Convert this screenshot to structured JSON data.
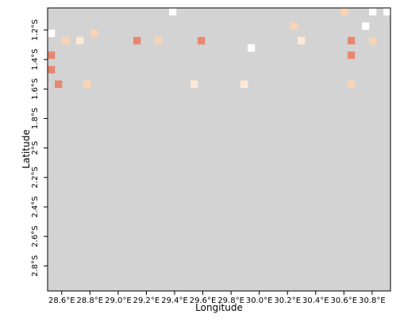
{
  "chart_data": {
    "type": "heatmap",
    "title": "",
    "xlabel": "Longitude",
    "ylabel": "Latitude",
    "xlim": [
      28.5,
      30.93
    ],
    "ylim": [
      -2.97,
      -1.05
    ],
    "x_ticks": [
      {
        "value": 28.6,
        "label": "28.6°E"
      },
      {
        "value": 28.8,
        "label": "28.8°E"
      },
      {
        "value": 29.0,
        "label": "29.0°E"
      },
      {
        "value": 29.2,
        "label": "29.2°E"
      },
      {
        "value": 29.4,
        "label": "29.4°E"
      },
      {
        "value": 29.6,
        "label": "29.6°E"
      },
      {
        "value": 29.8,
        "label": "29.8°E"
      },
      {
        "value": 30.0,
        "label": "30.0°E"
      },
      {
        "value": 30.2,
        "label": "30.2°E"
      },
      {
        "value": 30.4,
        "label": "30.4°E"
      },
      {
        "value": 30.6,
        "label": "30.6°E"
      },
      {
        "value": 30.8,
        "label": "30.8°E"
      }
    ],
    "y_ticks": [
      {
        "value": -1.2,
        "label": "1.2°S"
      },
      {
        "value": -1.4,
        "label": "1.4°S"
      },
      {
        "value": -1.6,
        "label": "1.6°S"
      },
      {
        "value": -1.8,
        "label": "1.8°S"
      },
      {
        "value": -2.0,
        "label": "2°S"
      },
      {
        "value": -2.2,
        "label": "2.2°S"
      },
      {
        "value": -2.4,
        "label": "2.4°S"
      },
      {
        "value": -2.6,
        "label": "2.6°S"
      },
      {
        "value": -2.8,
        "label": "2.8°S"
      }
    ],
    "cell_size_deg": 0.05,
    "grid_cols": 48,
    "grid_rows": 39,
    "background_color": "#d3d3d3",
    "legend": "none",
    "grid": false,
    "colors": {
      "1": "#ffffff",
      "2": "#fde8d8",
      "3": "#f8d3b4",
      "4": "#e8876f"
    },
    "rows": [
      "000000000000000001000000000000000000000003000101",
      "000000000000000000000000000000000000000000000000",
      "000000000000000000000000000000000030000000001000",
      "100000300000000000000000000000000000000000000000",
      "003020000000400300000400000000000002000000400300",
      "000000000000000000000000000010000000000000000000",
      "400000000000000000000000000000000000000000400000",
      "000000000000000000000000000000000000000000000000",
      "400000000000000000000000000000000000000000000000",
      "000000000000000000000000000000000000000000000000",
      "040003000000000000002000000200000000000000300000",
      "000000000000000000000000000000000000000000000000",
      "000000000000000000000000000000000000000000000000",
      "000000000000000000000000000000000000000000000000",
      "000000000000000000000000000000000000000000000000",
      "000000000000000000000000000000000000000000000000",
      "000000000000000000000000000000000000000000000000",
      "000000000000000000000000000000000000000000000000",
      "000000000000000000000000000000000000000000000000",
      "000000000000000000000000000000000000000000000000",
      "000000000000000000000000000000000000000000000000",
      "000000000000000000000000000000000000000000000000",
      "000000000000000000000000000000000000000000000000",
      "000000000000000000000000000000000000000000000000",
      "000000000000000000000000000000000000000000000000",
      "000000000000000000000000000000000000000000000000",
      "000000000000000000000000000000000000000000000000",
      "000000000000000000000000000000000000000000000000",
      "000000000000000000000000000000000000000000000000",
      "000000000000000000000000000000000000000000000000",
      "000000000000000000000000000000000000000000000000",
      "000000000000000000000000000000000000000000000000",
      "000000000000000000000000000000000000000000000000",
      "000000000000000000000000000000000000000000000000",
      "000000000000000000000000000000000000000000000000",
      "000000000000000000000000000000000000000000000000",
      "000000000000000000000000000000000000000000000000",
      "000000000000000000000000000000000000000000000000",
      "000000000000000000000000000000000000000000000000"
    ]
  }
}
